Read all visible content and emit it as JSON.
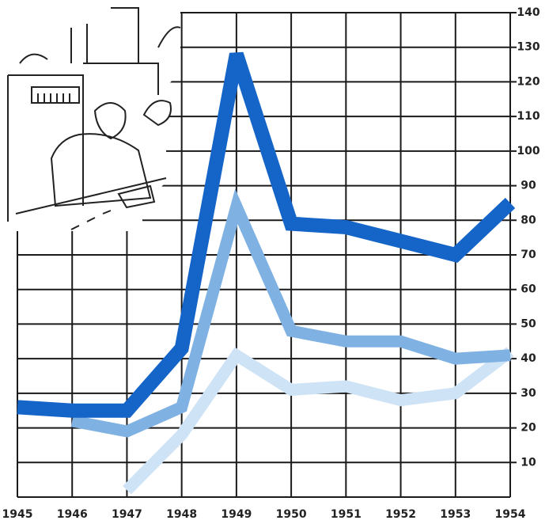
{
  "chart_data": {
    "type": "line",
    "categories": [
      "1945",
      "1946",
      "1947",
      "1948",
      "1949",
      "1950",
      "1951",
      "1952",
      "1953",
      "1954"
    ],
    "series": [
      {
        "color": "#1565c8",
        "values": [
          26,
          25,
          25,
          43,
          128,
          79,
          78,
          74,
          70,
          85
        ]
      },
      {
        "color": "#7fb1e3",
        "values": [
          null,
          22,
          19,
          26,
          84,
          48,
          45,
          45,
          40,
          41
        ]
      },
      {
        "color": "#cfe3f6",
        "values": [
          null,
          null,
          2,
          18,
          41,
          31,
          32,
          28,
          30,
          42
        ]
      }
    ],
    "ylim": [
      0,
      140
    ],
    "yticks": [
      10,
      20,
      30,
      40,
      50,
      60,
      70,
      80,
      90,
      100,
      110,
      120,
      130,
      140
    ],
    "grid": true
  }
}
